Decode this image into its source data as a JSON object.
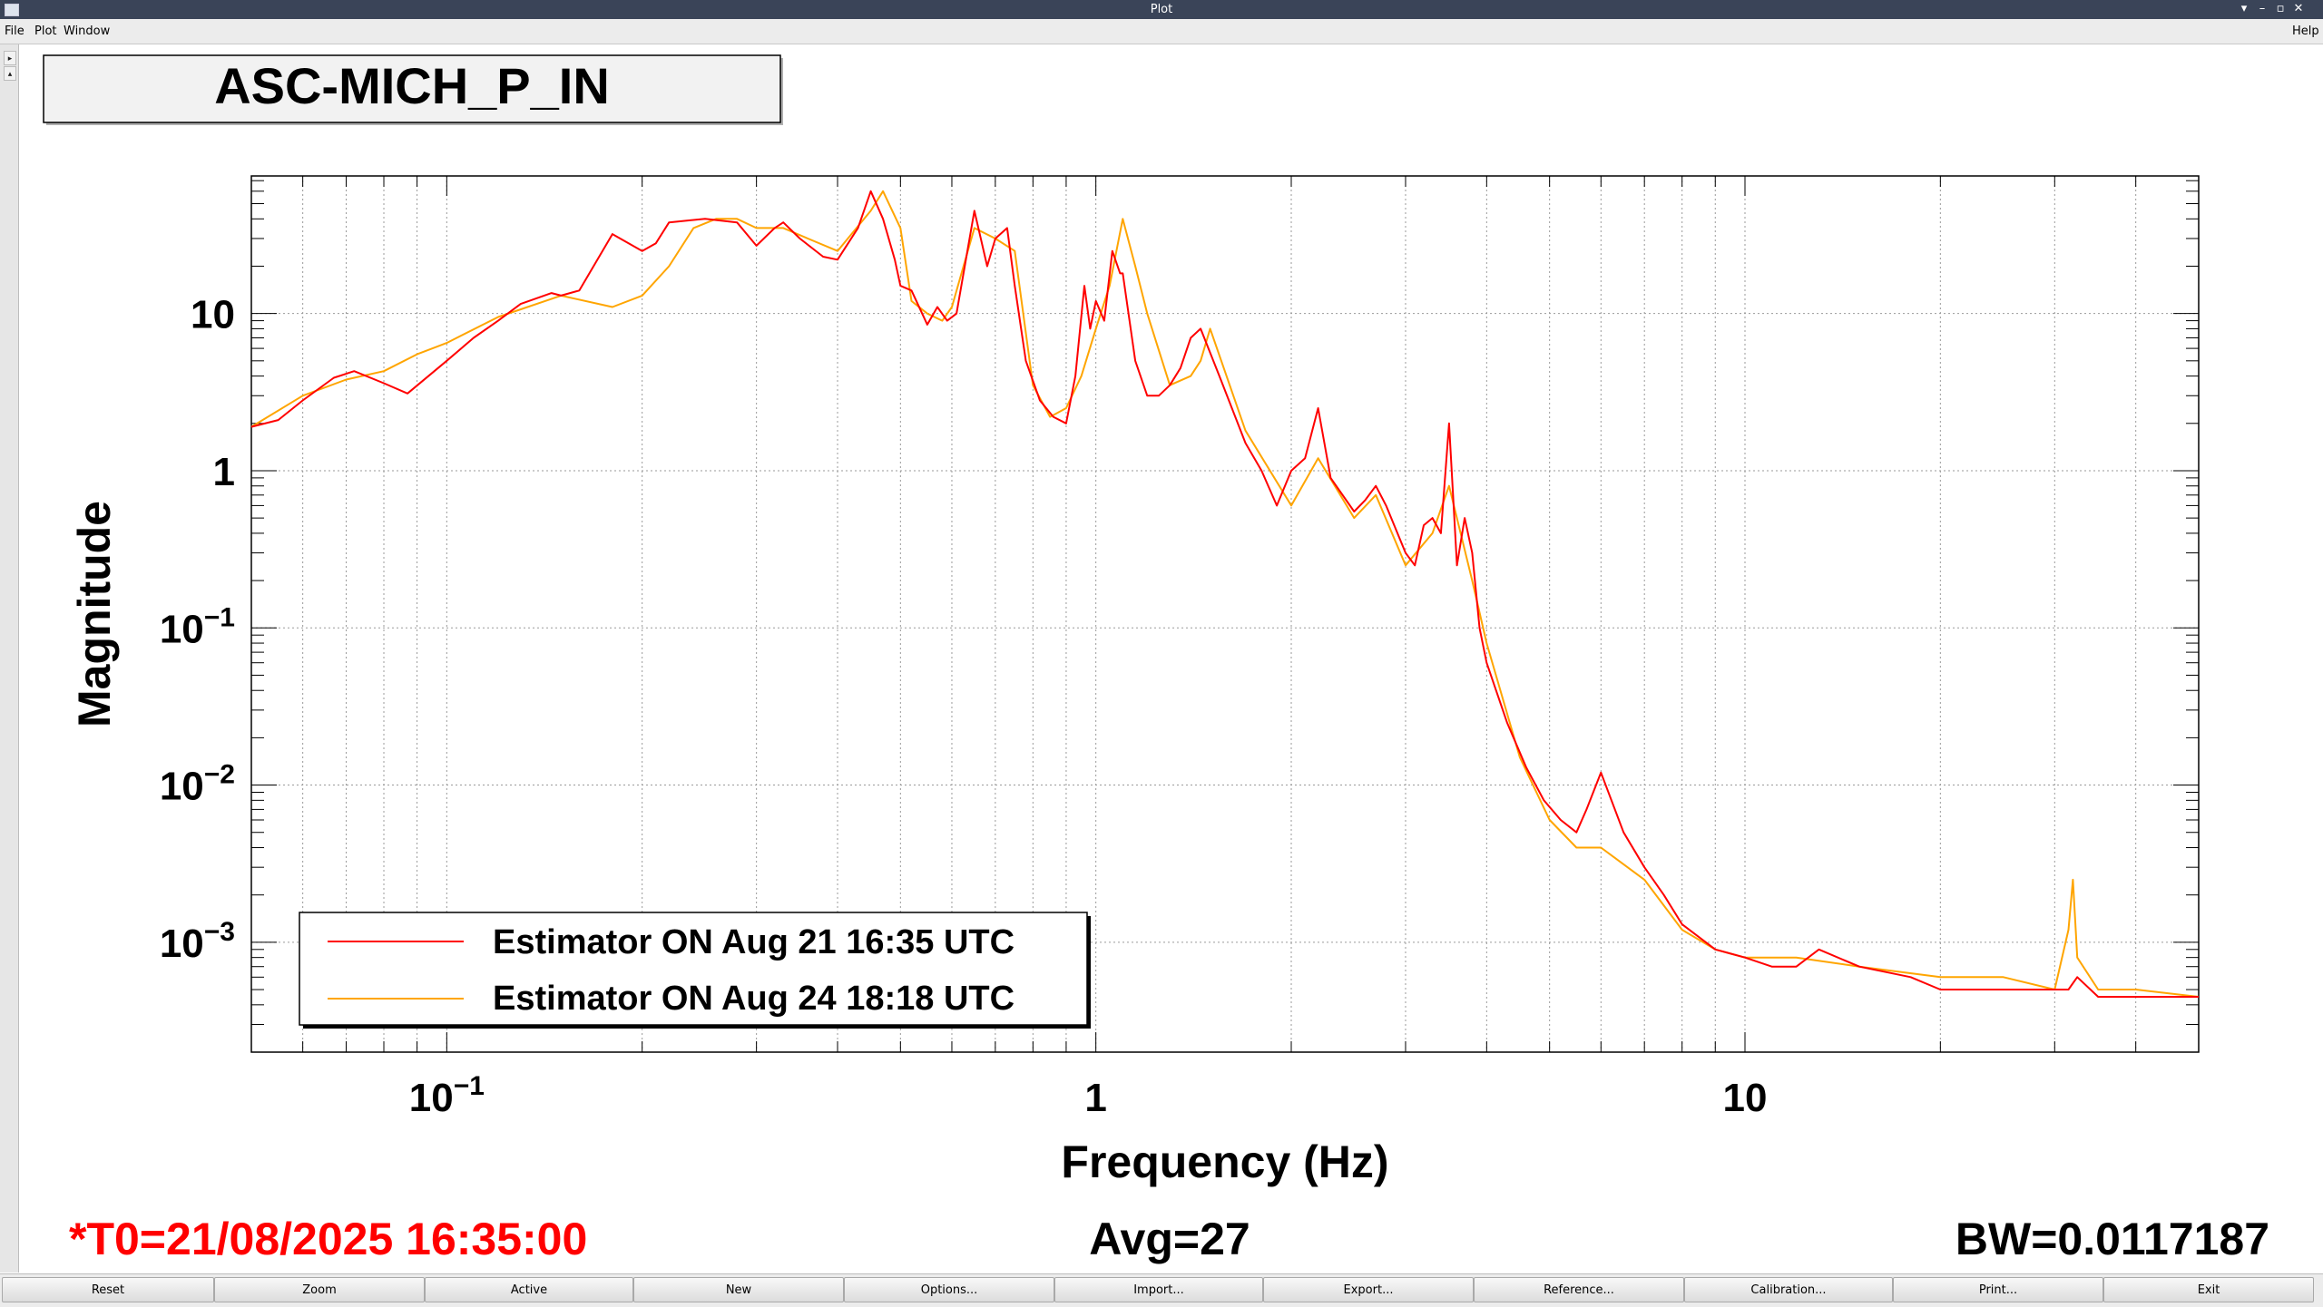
{
  "window": {
    "title": "Plot"
  },
  "menu": {
    "file": "File",
    "plot": "Plot",
    "window": "Window",
    "help": "Help"
  },
  "plot": {
    "title": "ASC-MICH_P_IN",
    "t0": "*T0=21/08/2025 16:35:00",
    "avg": "Avg=27",
    "bw": "BW=0.0117187"
  },
  "bottom_buttons": [
    "Reset",
    "Zoom",
    "Active",
    "New",
    "Options...",
    "Import...",
    "Export...",
    "Reference...",
    "Calibration...",
    "Print...",
    "Exit"
  ],
  "colors": {
    "series1": "#ff0000",
    "series2": "#ffa500",
    "titlebar": "#3a4458",
    "status_red": "#ff0000"
  },
  "chart_data": {
    "type": "line",
    "xlabel": "Frequency (Hz)",
    "ylabel": "Magnitude",
    "x_scale": "log",
    "y_scale": "log",
    "xlim": [
      0.05,
      50
    ],
    "ylim": [
      0.0002,
      75
    ],
    "grid": true,
    "legend_position": "bottom-left",
    "x_ticks": [
      {
        "v": 0.1,
        "b": "10",
        "e": "−1"
      },
      {
        "v": 1,
        "b": "1",
        "e": ""
      },
      {
        "v": 10,
        "b": "10",
        "e": ""
      }
    ],
    "y_ticks": [
      {
        "v": 10,
        "b": "10",
        "e": ""
      },
      {
        "v": 1,
        "b": "1",
        "e": ""
      },
      {
        "v": 0.1,
        "b": "10",
        "e": "−1"
      },
      {
        "v": 0.01,
        "b": "10",
        "e": "−2"
      },
      {
        "v": 0.001,
        "b": "10",
        "e": "−3"
      }
    ],
    "series": [
      {
        "name": "Estimator ON Aug 21 16:35 UTC",
        "color": "#ff0000",
        "x": [
          0.05,
          0.055,
          0.06,
          0.067,
          0.072,
          0.08,
          0.087,
          0.1,
          0.11,
          0.12,
          0.13,
          0.145,
          0.15,
          0.16,
          0.18,
          0.2,
          0.21,
          0.22,
          0.25,
          0.28,
          0.3,
          0.32,
          0.33,
          0.35,
          0.38,
          0.4,
          0.43,
          0.45,
          0.47,
          0.49,
          0.5,
          0.52,
          0.55,
          0.57,
          0.59,
          0.61,
          0.65,
          0.68,
          0.7,
          0.73,
          0.75,
          0.78,
          0.82,
          0.86,
          0.9,
          0.93,
          0.96,
          0.98,
          1.0,
          1.03,
          1.06,
          1.09,
          1.1,
          1.15,
          1.2,
          1.25,
          1.3,
          1.35,
          1.4,
          1.45,
          1.55,
          1.7,
          1.8,
          1.9,
          2.0,
          2.1,
          2.2,
          2.3,
          2.5,
          2.6,
          2.7,
          2.8,
          3.0,
          3.1,
          3.2,
          3.3,
          3.4,
          3.5,
          3.6,
          3.7,
          3.8,
          3.9,
          4.0,
          4.3,
          4.6,
          4.9,
          5.2,
          5.5,
          5.7,
          6.0,
          6.5,
          7.0,
          7.5,
          8.0,
          9.0,
          10.0,
          11.0,
          12.0,
          13.0,
          15.0,
          18.0,
          20.0,
          25.0,
          30.0,
          31.5,
          32.5,
          35.0,
          40.0,
          45.0,
          50.0
        ],
        "y": [
          1.9,
          2.1,
          2.8,
          3.9,
          4.3,
          3.6,
          3.1,
          5.0,
          7.0,
          9.0,
          11.5,
          13.5,
          13.0,
          14.0,
          32.0,
          25.0,
          28.0,
          38.0,
          40.0,
          38.0,
          27.0,
          35.0,
          38.0,
          30.0,
          23.0,
          22.0,
          35.0,
          60.0,
          40.0,
          22.0,
          15.0,
          14.0,
          8.5,
          11.0,
          9.0,
          10.0,
          45.0,
          20.0,
          30.0,
          35.0,
          15.0,
          5.0,
          2.8,
          2.2,
          2.0,
          4.0,
          15.0,
          8.0,
          12.0,
          9.0,
          25.0,
          18.0,
          18.0,
          5.0,
          3.0,
          3.0,
          3.5,
          4.5,
          7.0,
          8.0,
          4.0,
          1.5,
          1.0,
          0.6,
          1.0,
          1.2,
          2.5,
          0.9,
          0.55,
          0.65,
          0.8,
          0.6,
          0.3,
          0.25,
          0.45,
          0.5,
          0.4,
          2.0,
          0.25,
          0.5,
          0.3,
          0.1,
          0.06,
          0.025,
          0.013,
          0.008,
          0.006,
          0.005,
          0.007,
          0.012,
          0.005,
          0.003,
          0.002,
          0.0013,
          0.0009,
          0.0008,
          0.0007,
          0.0007,
          0.0009,
          0.0007,
          0.0006,
          0.0005,
          0.0005,
          0.0005,
          0.0005,
          0.0006,
          0.00045,
          0.00045,
          0.00045,
          0.00045
        ]
      },
      {
        "name": "Estimator ON Aug 24 18:18 UTC",
        "color": "#ffa500",
        "x": [
          0.05,
          0.06,
          0.07,
          0.08,
          0.09,
          0.1,
          0.12,
          0.15,
          0.18,
          0.2,
          0.22,
          0.24,
          0.26,
          0.28,
          0.3,
          0.33,
          0.36,
          0.4,
          0.45,
          0.47,
          0.5,
          0.52,
          0.55,
          0.58,
          0.6,
          0.65,
          0.7,
          0.75,
          0.8,
          0.85,
          0.9,
          0.95,
          1.0,
          1.05,
          1.1,
          1.15,
          1.2,
          1.3,
          1.4,
          1.45,
          1.5,
          1.7,
          2.0,
          2.2,
          2.5,
          2.7,
          3.0,
          3.3,
          3.5,
          3.8,
          4.0,
          4.5,
          5.0,
          5.5,
          6.0,
          7.0,
          8.0,
          9.0,
          10.0,
          12.0,
          15.0,
          20.0,
          25.0,
          30.0,
          31.5,
          32.0,
          32.5,
          35.0,
          40.0,
          50.0
        ],
        "y": [
          1.9,
          3.0,
          3.8,
          4.3,
          5.5,
          6.5,
          9.5,
          13.0,
          11.0,
          13.0,
          20.0,
          35.0,
          40.0,
          40.0,
          35.0,
          35.0,
          30.0,
          25.0,
          45.0,
          60.0,
          35.0,
          12.0,
          10.0,
          9.0,
          11.0,
          35.0,
          30.0,
          25.0,
          3.5,
          2.2,
          2.5,
          4.0,
          8.0,
          15.0,
          40.0,
          20.0,
          10.0,
          3.5,
          4.0,
          5.0,
          8.0,
          1.8,
          0.6,
          1.2,
          0.5,
          0.7,
          0.25,
          0.4,
          0.8,
          0.2,
          0.08,
          0.015,
          0.006,
          0.004,
          0.004,
          0.0025,
          0.0012,
          0.0009,
          0.0008,
          0.0008,
          0.0007,
          0.0006,
          0.0006,
          0.0005,
          0.0012,
          0.0025,
          0.0008,
          0.0005,
          0.0005,
          0.00045
        ]
      }
    ]
  }
}
